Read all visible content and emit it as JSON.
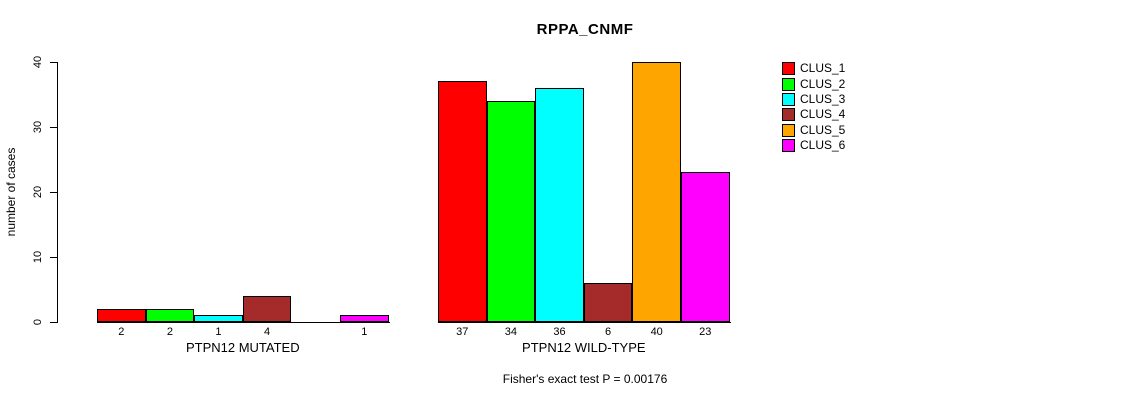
{
  "chart_data": {
    "type": "bar",
    "title": "RPPA_CNMF",
    "ylabel": "number of cases",
    "xlabel": "",
    "ylim": [
      0,
      40
    ],
    "yticks": [
      0,
      10,
      20,
      30,
      40
    ],
    "grid": false,
    "legend_position": "right",
    "categories": [
      "PTPN12 MUTATED",
      "PTPN12 WILD-TYPE"
    ],
    "series": [
      {
        "name": "CLUS_1",
        "color": "#ff0000",
        "values": [
          2,
          37
        ]
      },
      {
        "name": "CLUS_2",
        "color": "#00ff00",
        "values": [
          2,
          34
        ]
      },
      {
        "name": "CLUS_3",
        "color": "#00ffff",
        "values": [
          1,
          36
        ]
      },
      {
        "name": "CLUS_4",
        "color": "#a52a2a",
        "values": [
          4,
          6
        ]
      },
      {
        "name": "CLUS_5",
        "color": "#ffa500",
        "values": [
          0,
          40
        ]
      },
      {
        "name": "CLUS_6",
        "color": "#ff00ff",
        "values": [
          1,
          23
        ]
      }
    ],
    "bar_value_labels": [
      [
        "2",
        "2",
        "1",
        "4",
        "",
        "1"
      ],
      [
        "37",
        "34",
        "36",
        "6",
        "40",
        "23"
      ]
    ],
    "footnote": "Fisher's exact test P = 0.00176"
  }
}
